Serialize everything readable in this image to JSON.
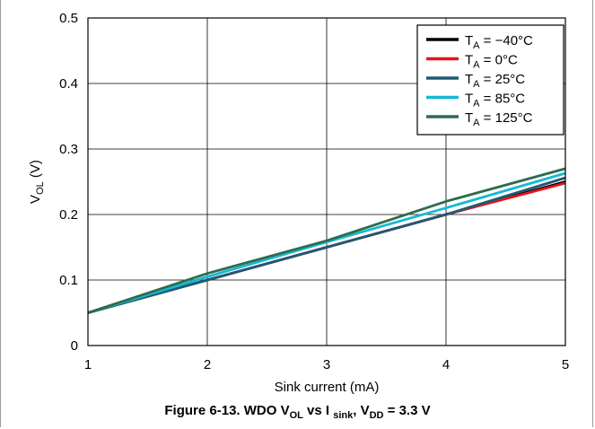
{
  "chart_data": {
    "type": "line",
    "title": "",
    "xlabel": "Sink current (mA)",
    "ylabel": "V_OL (V)",
    "xlim": [
      1,
      5
    ],
    "ylim": [
      0,
      0.5
    ],
    "x_ticks": [
      "1",
      "2",
      "3",
      "4",
      "5"
    ],
    "y_ticks": [
      "0",
      "0.1",
      "0.2",
      "0.3",
      "0.4",
      "0.5"
    ],
    "grid": true,
    "legend_position": "top-right",
    "series": [
      {
        "name": "T_A = −40°C",
        "color": "#000000",
        "x": [
          1,
          2,
          3,
          4,
          5
        ],
        "y": [
          0.05,
          0.1,
          0.15,
          0.2,
          0.25
        ]
      },
      {
        "name": "T_A = 0°C",
        "color": "#e8131a",
        "x": [
          1,
          2,
          3,
          4,
          5
        ],
        "y": [
          0.05,
          0.1,
          0.15,
          0.2,
          0.248
        ]
      },
      {
        "name": "T_A = 25°C",
        "color": "#1d5a73",
        "x": [
          1,
          2,
          3,
          4,
          5
        ],
        "y": [
          0.05,
          0.1,
          0.15,
          0.2,
          0.256
        ]
      },
      {
        "name": "T_A = 85°C",
        "color": "#14b9d6",
        "x": [
          1,
          2,
          3,
          4,
          5
        ],
        "y": [
          0.05,
          0.105,
          0.158,
          0.21,
          0.263
        ]
      },
      {
        "name": "T_A = 125°C",
        "color": "#2e6b4c",
        "x": [
          1,
          2,
          3,
          4,
          5
        ],
        "y": [
          0.05,
          0.11,
          0.16,
          0.22,
          0.27
        ]
      }
    ]
  },
  "caption": {
    "prefix": "Figure 6-13. WDO V",
    "sub1": "OL",
    "mid": " vs I ",
    "sub2": "sink",
    "mid2": ", V",
    "sub3": "DD",
    "suffix": " = 3.3 V"
  }
}
